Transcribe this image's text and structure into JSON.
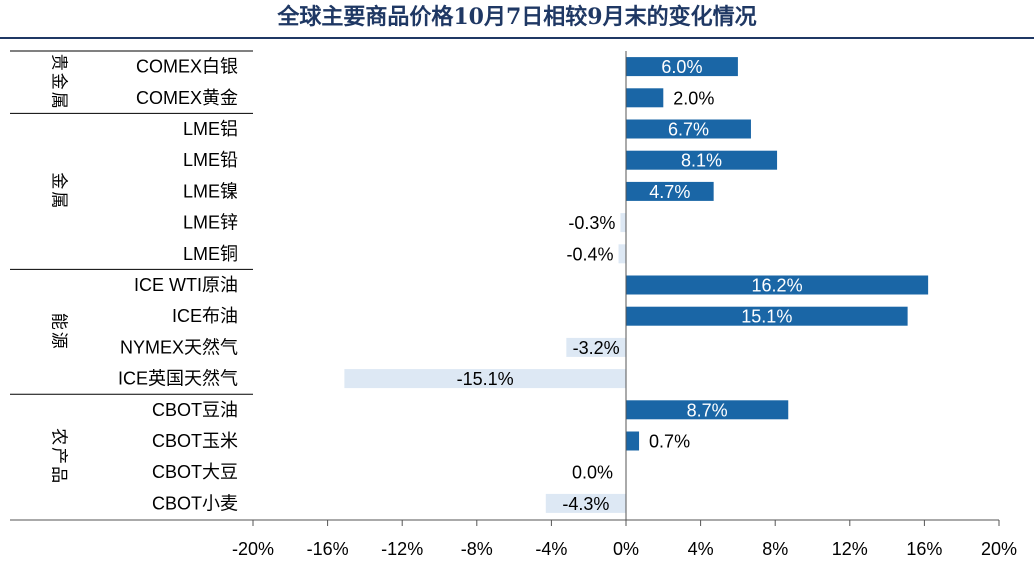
{
  "title": "全球主要商品价格10月7日相较9月末的变化情况",
  "colors": {
    "positive": "#1a66a6",
    "negative": "#dde8f4",
    "title": "#1f3864",
    "axis": "#555555"
  },
  "chart_data": {
    "type": "bar",
    "orientation": "horizontal",
    "title": "全球主要商品价格10月7日相较9月末的变化情况",
    "groups": [
      {
        "name": "贵金属",
        "items": [
          {
            "label": "COMEX白银",
            "value": 6.0,
            "value_label": "6.0%"
          },
          {
            "label": "COMEX黄金",
            "value": 2.0,
            "value_label": "2.0%"
          }
        ]
      },
      {
        "name": "金属",
        "items": [
          {
            "label": "LME铝",
            "value": 6.7,
            "value_label": "6.7%"
          },
          {
            "label": "LME铅",
            "value": 8.1,
            "value_label": "8.1%"
          },
          {
            "label": "LME镍",
            "value": 4.7,
            "value_label": "4.7%"
          },
          {
            "label": "LME锌",
            "value": -0.3,
            "value_label": "-0.3%"
          },
          {
            "label": "LME铜",
            "value": -0.4,
            "value_label": "-0.4%"
          }
        ]
      },
      {
        "name": "能源",
        "items": [
          {
            "label": "ICE WTI原油",
            "value": 16.2,
            "value_label": "16.2%"
          },
          {
            "label": "ICE布油",
            "value": 15.1,
            "value_label": "15.1%"
          },
          {
            "label": "NYMEX天然气",
            "value": -3.2,
            "value_label": "-3.2%"
          },
          {
            "label": "ICE英国天然气",
            "value": -15.1,
            "value_label": "-15.1%"
          }
        ]
      },
      {
        "name": "农产品",
        "items": [
          {
            "label": "CBOT豆油",
            "value": 8.7,
            "value_label": "8.7%"
          },
          {
            "label": "CBOT玉米",
            "value": 0.7,
            "value_label": "0.7%"
          },
          {
            "label": "CBOT大豆",
            "value": 0.0,
            "value_label": "0.0%"
          },
          {
            "label": "CBOT小麦",
            "value": -4.3,
            "value_label": "-4.3%"
          }
        ]
      }
    ],
    "xlim": [
      -20,
      20
    ],
    "xticks": [
      -20,
      -16,
      -12,
      -8,
      -4,
      0,
      4,
      8,
      12,
      16,
      20
    ],
    "xtick_labels": [
      "-20%",
      "-16%",
      "-12%",
      "-8%",
      "-4%",
      "0%",
      "4%",
      "8%",
      "12%",
      "16%",
      "20%"
    ],
    "grid": false,
    "legend": "none"
  }
}
